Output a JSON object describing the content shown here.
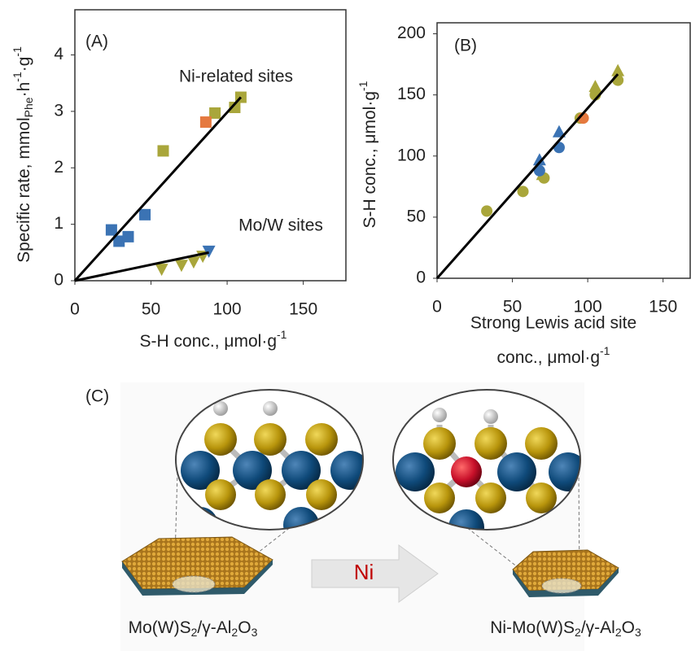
{
  "chart_data": [
    {
      "type": "scatter",
      "panel_label": "(A)",
      "y_label": [
        "Specific rate, mmol",
        "Phe",
        "·h",
        "-1",
        "·g",
        "-1"
      ],
      "x_label": [
        "S-H conc., μmol·g",
        "-1"
      ],
      "annotations": [
        "Ni-related sites",
        "Mo/W sites"
      ],
      "xlim": [
        0,
        178
      ],
      "ylim": [
        0,
        4.8
      ],
      "xticks": [
        0,
        50,
        100,
        150
      ],
      "yticks": [
        0,
        1,
        2,
        3,
        4
      ],
      "series": [
        {
          "marker": "square",
          "color": "#3b73b4",
          "x": [
            24,
            29,
            35,
            46
          ],
          "values": [
            0.9,
            0.7,
            0.78,
            1.17
          ]
        },
        {
          "marker": "square",
          "color": "#a9a63b",
          "x": [
            58,
            92,
            105,
            109
          ],
          "values": [
            2.3,
            2.97,
            3.07,
            3.25
          ]
        },
        {
          "marker": "square",
          "color": "#e5793f",
          "x": [
            86
          ],
          "values": [
            2.81
          ]
        },
        {
          "marker": "triangle-down",
          "color": "#a9a63b",
          "x": [
            57,
            70,
            78,
            84
          ],
          "values": [
            0.2,
            0.27,
            0.33,
            0.43
          ]
        },
        {
          "marker": "triangle-down",
          "color": "#3b73b4",
          "x": [
            88
          ],
          "values": [
            0.52
          ]
        }
      ],
      "lines": [
        {
          "color": "#000000",
          "x": [
            0,
            109
          ],
          "values": [
            0,
            3.25
          ]
        },
        {
          "color": "#000000",
          "x": [
            0,
            88
          ],
          "values": [
            0,
            0.5
          ]
        }
      ]
    },
    {
      "type": "scatter",
      "panel_label": "(B)",
      "y_label": [
        "S-H conc., μmol·g",
        "-1"
      ],
      "x_label": [
        "Strong Lewis acid site",
        "conc., μmol·g",
        "-1"
      ],
      "annotations": [],
      "xlim": [
        0,
        168
      ],
      "ylim": [
        0,
        209
      ],
      "xticks": [
        0,
        50,
        100,
        150
      ],
      "yticks": [
        0,
        50,
        100,
        150,
        200
      ],
      "series": [
        {
          "marker": "circle",
          "color": "#a9a63b",
          "x": [
            33,
            57,
            71,
            95,
            105,
            120
          ],
          "values": [
            55,
            71,
            82,
            131,
            150,
            162
          ]
        },
        {
          "marker": "triangle-up",
          "color": "#a9a63b",
          "x": [
            70,
            105,
            120
          ],
          "values": [
            85,
            157,
            170
          ]
        },
        {
          "marker": "circle",
          "color": "#3b73b4",
          "x": [
            68,
            81
          ],
          "values": [
            88,
            107
          ]
        },
        {
          "marker": "triangle-up",
          "color": "#3b73b4",
          "x": [
            68,
            81
          ],
          "values": [
            97,
            120
          ]
        },
        {
          "marker": "circle",
          "color": "#e5793f",
          "x": [
            97
          ],
          "values": [
            131
          ]
        }
      ],
      "lines": [
        {
          "color": "#000000",
          "x": [
            0,
            120
          ],
          "values": [
            0,
            167
          ]
        }
      ]
    }
  ],
  "diagram": {
    "panel_label": "(C)",
    "arrow_label": "Ni",
    "left_caption": [
      "Mo(W)S",
      "2",
      "/γ-Al",
      "2",
      "O",
      "3"
    ],
    "right_caption": [
      "Ni-Mo(W)S",
      "2",
      "/γ-Al",
      "2",
      "O",
      "3"
    ]
  }
}
